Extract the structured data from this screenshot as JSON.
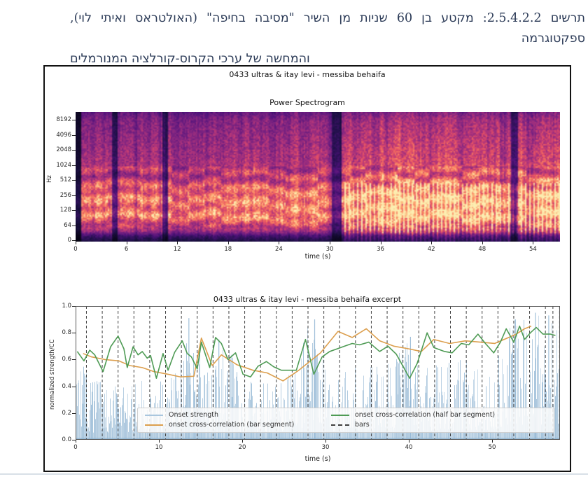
{
  "page": {
    "background": "#ffffff",
    "bottom_rule_color": "#d8e0e7"
  },
  "caption": {
    "line1": "תרשים 2.5.4.2.2: מקטע בן 60 שניות מן השיר \"מסיבה בחיפה\" (האולטראס ואיתי לוי), ספקטוגרמה",
    "line2": "והמחשה של ערכי הקרוס-קורלציה המנורמלים",
    "color": "#2d3c58"
  },
  "figure": {
    "suptitle": "0433 ultras & itay levi - messiba behaifa",
    "border_color": "#121212"
  },
  "chart_data": [
    {
      "type": "heatmap",
      "title": "Power Spectrogram",
      "xlabel": "time (s)",
      "ylabel": "Hz",
      "yticks": [
        "8192",
        "4096",
        "2048",
        "1024",
        "512",
        "256",
        "128",
        "64",
        "0"
      ],
      "xticks": [
        0,
        6,
        12,
        18,
        24,
        30,
        36,
        42,
        48,
        54
      ],
      "x_range_s": [
        0,
        57.2
      ],
      "y_scale": "log",
      "colormap": "magma",
      "colormap_rgb": [
        [
          0,
          0,
          0,
          4
        ],
        [
          0.13,
          28,
          16,
          68
        ],
        [
          0.25,
          79,
          18,
          123
        ],
        [
          0.38,
          129,
          37,
          129
        ],
        [
          0.5,
          181,
          54,
          122
        ],
        [
          0.62,
          229,
          80,
          100
        ],
        [
          0.75,
          251,
          135,
          97
        ],
        [
          0.88,
          254,
          194,
          135
        ],
        [
          1,
          252,
          253,
          191
        ]
      ],
      "bright_section_start_s": 31.3,
      "dark_gaps_s": [
        [
          0,
          0.6
        ],
        [
          4.2,
          4.9
        ],
        [
          10.2,
          10.9
        ],
        [
          30.1,
          31.3
        ],
        [
          51.4,
          52.2
        ]
      ],
      "description": "log-frequency power spectrogram of the 60 s excerpt; energy concentrated between 64 and 512 Hz; denser, brighter pulse-train section after ~31 s",
      "seed": 11
    },
    {
      "type": "line",
      "title": "0433 ultras & itay levi - messiba behaifa excerpt",
      "xlabel": "time (s)",
      "ylabel": "normalized strength/CC",
      "ylim": [
        0,
        1
      ],
      "xlim": [
        0,
        58.15
      ],
      "yticks": [
        "0.0",
        "0.2",
        "0.4",
        "0.6",
        "0.8",
        "1.0"
      ],
      "xticks": [
        0,
        10,
        20,
        30,
        40,
        50
      ],
      "bars_color": "#404040",
      "bars_x": [
        1.3,
        3.2,
        5.1,
        7.0,
        8.9,
        10.8,
        12.7,
        14.6,
        16.5,
        18.4,
        20.3,
        22.2,
        24.1,
        26.0,
        27.9,
        29.8,
        31.7,
        33.6,
        35.5,
        37.4,
        39.3,
        41.2,
        43.1,
        45.0,
        46.9,
        48.8,
        50.7,
        52.6,
        54.5,
        56.4,
        57.3,
        58.1
      ],
      "onset_strength": {
        "color": "#8fb4d2",
        "envelope_step_s": 2,
        "envelope": [
          0.68,
          0.45,
          0.42,
          0.4,
          0.45,
          0.43,
          0.5,
          0.91,
          0.48,
          0.75,
          0.45,
          0.42,
          0.44,
          0.5,
          0.9,
          0.58,
          0.52,
          0.55,
          0.55,
          0.58,
          0.77,
          0.55,
          0.58,
          0.6,
          0.62,
          0.6,
          0.9,
          0.95,
          0.95,
          0.92
        ],
        "spikes": [
          [
            13.6,
            0.91
          ],
          [
            17.2,
            0.75
          ],
          [
            28.7,
            0.9
          ],
          [
            40.2,
            0.77
          ],
          [
            52.8,
            0.9
          ],
          [
            55.2,
            0.95
          ],
          [
            56.8,
            0.93
          ]
        ]
      },
      "series": [
        {
          "name": "onset cross-correlation (bar segment)",
          "color": "#dc9f4e",
          "points": [
            [
              0.9,
              0.645
            ],
            [
              1.9,
              0.62
            ],
            [
              3.5,
              0.6
            ],
            [
              5.2,
              0.59
            ],
            [
              6.5,
              0.555
            ],
            [
              8.0,
              0.54
            ],
            [
              9.4,
              0.51
            ],
            [
              11.1,
              0.49
            ],
            [
              12.6,
              0.47
            ],
            [
              14.2,
              0.475
            ],
            [
              15.1,
              0.76
            ],
            [
              16.4,
              0.555
            ],
            [
              17.5,
              0.635
            ],
            [
              19.4,
              0.56
            ],
            [
              21.3,
              0.52
            ],
            [
              23.0,
              0.5
            ],
            [
              24.9,
              0.44
            ],
            [
              26.8,
              0.52
            ],
            [
              29.4,
              0.65
            ],
            [
              31.5,
              0.81
            ],
            [
              33.2,
              0.765
            ],
            [
              34.9,
              0.83
            ],
            [
              36.5,
              0.74
            ],
            [
              38.2,
              0.7
            ],
            [
              40.0,
              0.68
            ],
            [
              41.5,
              0.66
            ],
            [
              43.0,
              0.75
            ],
            [
              44.9,
              0.72
            ],
            [
              46.8,
              0.74
            ],
            [
              48.6,
              0.73
            ],
            [
              50.3,
              0.72
            ],
            [
              51.8,
              0.76
            ],
            [
              52.9,
              0.79
            ],
            [
              53.9,
              0.83
            ],
            [
              54.7,
              0.85
            ]
          ]
        },
        {
          "name": "onset cross-correlation (half bar segment)",
          "color": "#4f9b55",
          "points": [
            [
              0.2,
              0.66
            ],
            [
              1.0,
              0.59
            ],
            [
              1.7,
              0.67
            ],
            [
              2.3,
              0.635
            ],
            [
              3.3,
              0.51
            ],
            [
              4.2,
              0.695
            ],
            [
              5.1,
              0.775
            ],
            [
              5.8,
              0.68
            ],
            [
              6.2,
              0.54
            ],
            [
              6.9,
              0.695
            ],
            [
              7.5,
              0.635
            ],
            [
              8.0,
              0.66
            ],
            [
              8.6,
              0.61
            ],
            [
              9.0,
              0.63
            ],
            [
              9.7,
              0.46
            ],
            [
              10.5,
              0.645
            ],
            [
              11.1,
              0.52
            ],
            [
              11.9,
              0.655
            ],
            [
              12.8,
              0.74
            ],
            [
              13.4,
              0.645
            ],
            [
              13.9,
              0.62
            ],
            [
              14.6,
              0.53
            ],
            [
              15.1,
              0.73
            ],
            [
              16.1,
              0.54
            ],
            [
              16.8,
              0.765
            ],
            [
              17.5,
              0.72
            ],
            [
              18.3,
              0.6
            ],
            [
              19.2,
              0.65
            ],
            [
              20.1,
              0.49
            ],
            [
              21.0,
              0.47
            ],
            [
              21.9,
              0.55
            ],
            [
              22.9,
              0.585
            ],
            [
              23.8,
              0.545
            ],
            [
              24.7,
              0.52
            ],
            [
              25.6,
              0.52
            ],
            [
              26.5,
              0.52
            ],
            [
              27.6,
              0.75
            ],
            [
              28.6,
              0.49
            ],
            [
              29.6,
              0.62
            ],
            [
              30.5,
              0.66
            ],
            [
              31.4,
              0.68
            ],
            [
              32.3,
              0.7
            ],
            [
              33.2,
              0.72
            ],
            [
              34.1,
              0.71
            ],
            [
              35.2,
              0.73
            ],
            [
              36.5,
              0.66
            ],
            [
              37.5,
              0.7
            ],
            [
              38.5,
              0.64
            ],
            [
              39.3,
              0.55
            ],
            [
              40.1,
              0.46
            ],
            [
              41.0,
              0.57
            ],
            [
              42.2,
              0.8
            ],
            [
              43.0,
              0.69
            ],
            [
              44.3,
              0.66
            ],
            [
              45.2,
              0.65
            ],
            [
              46.3,
              0.72
            ],
            [
              47.2,
              0.71
            ],
            [
              48.3,
              0.79
            ],
            [
              49.2,
              0.72
            ],
            [
              50.2,
              0.65
            ],
            [
              51.0,
              0.73
            ],
            [
              51.7,
              0.83
            ],
            [
              52.6,
              0.73
            ],
            [
              53.3,
              0.85
            ],
            [
              53.9,
              0.75
            ],
            [
              54.6,
              0.8
            ],
            [
              55.3,
              0.84
            ],
            [
              56.1,
              0.79
            ],
            [
              57.0,
              0.79
            ],
            [
              57.6,
              0.78
            ]
          ]
        }
      ],
      "legend": [
        {
          "label": "Onset strength",
          "color": "#a9c6de",
          "dash": false
        },
        {
          "label": "onset cross-correlation (half bar segment)",
          "color": "#4f9b55",
          "dash": false
        },
        {
          "label": "onset cross-correlation (bar segment)",
          "color": "#dc9f4e",
          "dash": false
        },
        {
          "label": "bars",
          "color": "#404040",
          "dash": true
        }
      ],
      "seed": 7
    }
  ]
}
